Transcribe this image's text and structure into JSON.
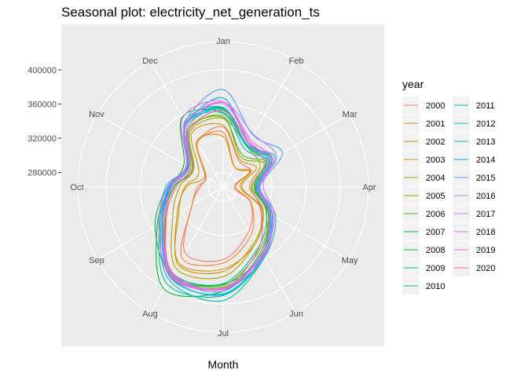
{
  "chart_data": {
    "type": "line",
    "coord": "polar",
    "title": "Seasonal plot: electricity_net_generation_ts",
    "xlabel": "Month",
    "ylabel": "",
    "months": [
      "Jan",
      "Feb",
      "Mar",
      "Apr",
      "May",
      "Jun",
      "Jul",
      "Aug",
      "Sep",
      "Oct",
      "Nov",
      "Dec"
    ],
    "r_ticks": [
      280000,
      320000,
      360000,
      400000
    ],
    "rlim": [
      263000,
      433000
    ],
    "grid": true,
    "legend_title": "year",
    "legend_position": "right",
    "series": [
      {
        "name": "2000",
        "color": "#F8766D",
        "values": [
          333000,
          299000,
          300000,
          276000,
          300000,
          323000,
          348000,
          352000,
          305000,
          290000,
          287000,
          323000
        ]
      },
      {
        "name": "2001",
        "color": "#EB8335",
        "values": [
          327000,
          290000,
          299000,
          278000,
          301000,
          328000,
          352000,
          359000,
          305000,
          293000,
          286000,
          323000
        ]
      },
      {
        "name": "2002",
        "color": "#DA8F00",
        "values": [
          322000,
          290000,
          301000,
          283000,
          313000,
          339000,
          359000,
          366000,
          325000,
          306000,
          288000,
          325000
        ]
      },
      {
        "name": "2003",
        "color": "#C49A00",
        "values": [
          335000,
          301000,
          308000,
          285000,
          316000,
          337000,
          362000,
          368000,
          323000,
          308000,
          296000,
          336000
        ]
      },
      {
        "name": "2004",
        "color": "#A9A400",
        "values": [
          343000,
          318000,
          313000,
          294000,
          317000,
          339000,
          368000,
          373000,
          331000,
          314000,
          304000,
          339000
        ]
      },
      {
        "name": "2005",
        "color": "#86AC00",
        "values": [
          346000,
          304000,
          318000,
          299000,
          321000,
          354000,
          380000,
          384000,
          342000,
          320000,
          303000,
          341000
        ]
      },
      {
        "name": "2006",
        "color": "#53B400",
        "values": [
          344000,
          307000,
          321000,
          297000,
          324000,
          348000,
          378000,
          382000,
          341000,
          318000,
          307000,
          343000
        ]
      },
      {
        "name": "2007",
        "color": "#00B82B",
        "values": [
          350000,
          318000,
          322000,
          300000,
          325000,
          351000,
          385000,
          401000,
          352000,
          325000,
          316000,
          358000
        ]
      },
      {
        "name": "2008",
        "color": "#00BC5A",
        "values": [
          355000,
          322000,
          325000,
          304000,
          326000,
          355000,
          377000,
          383000,
          355000,
          328000,
          311000,
          349000
        ]
      },
      {
        "name": "2009",
        "color": "#00BF7D",
        "values": [
          354000,
          318000,
          326000,
          301000,
          322000,
          345000,
          376000,
          380000,
          344000,
          321000,
          305000,
          345000
        ]
      },
      {
        "name": "2010",
        "color": "#00C19C",
        "values": [
          356000,
          319000,
          330000,
          302000,
          327000,
          358000,
          390000,
          394000,
          349000,
          324000,
          310000,
          352000
        ]
      },
      {
        "name": "2011",
        "color": "#00BFB8",
        "values": [
          356000,
          320000,
          333000,
          306000,
          334000,
          359000,
          396000,
          389000,
          348000,
          330000,
          312000,
          348000
        ]
      },
      {
        "name": "2012",
        "color": "#00BAD1",
        "values": [
          353000,
          319000,
          328000,
          305000,
          330000,
          356000,
          389000,
          385000,
          346000,
          326000,
          309000,
          350000
        ]
      },
      {
        "name": "2013",
        "color": "#00B2E6",
        "values": [
          349000,
          314000,
          324000,
          304000,
          329000,
          357000,
          388000,
          386000,
          345000,
          325000,
          310000,
          350000
        ]
      },
      {
        "name": "2014",
        "color": "#00A7F8",
        "values": [
          367000,
          323000,
          328000,
          302000,
          327000,
          358000,
          383000,
          380000,
          345000,
          324000,
          312000,
          348000
        ]
      },
      {
        "name": "2015",
        "color": "#5D9BFF",
        "values": [
          377000,
          333000,
          343000,
          306000,
          327000,
          353000,
          385000,
          382000,
          345000,
          327000,
          313000,
          351000
        ]
      },
      {
        "name": "2016",
        "color": "#A58AFF",
        "values": [
          362000,
          334000,
          335000,
          306000,
          330000,
          355000,
          382000,
          385000,
          344000,
          323000,
          309000,
          345000
        ]
      },
      {
        "name": "2017",
        "color": "#CE79FF",
        "values": [
          360000,
          325000,
          325000,
          310000,
          332000,
          356000,
          381000,
          383000,
          340000,
          324000,
          312000,
          350000
        ]
      },
      {
        "name": "2018",
        "color": "#E96BF1",
        "values": [
          363000,
          323000,
          330000,
          306000,
          330000,
          358000,
          382000,
          385000,
          350000,
          328000,
          313000,
          357000
        ]
      },
      {
        "name": "2019",
        "color": "#F864D9",
        "values": [
          362000,
          327000,
          329000,
          303000,
          325000,
          353000,
          383000,
          380000,
          344000,
          323000,
          309000,
          349000
        ]
      },
      {
        "name": "2020",
        "color": "#FF65B9",
        "values": [
          352000,
          322000,
          319000,
          296000,
          314000,
          346000,
          382000,
          381000,
          340000,
          318000,
          305000,
          341000
        ]
      }
    ]
  }
}
